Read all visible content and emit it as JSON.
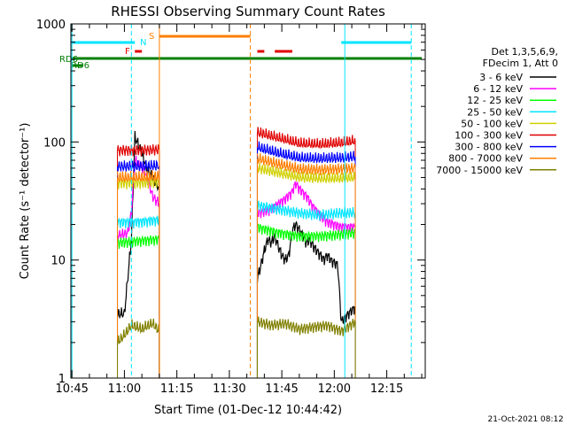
{
  "chart_data": {
    "type": "line",
    "title": "RHESSI Observing Summary Count Rates",
    "xlabel": "Start Time (01-Dec-12 10:44:42)",
    "ylabel": "Count Rate (s⁻¹ detector⁻¹)",
    "y_scale": "log",
    "ylim": [
      1,
      1000
    ],
    "xlim": [
      "10:44:42",
      "12:26:00"
    ],
    "x_ticks": [
      "10:45",
      "11:00",
      "11:15",
      "11:30",
      "11:45",
      "12:00",
      "12:15"
    ],
    "y_ticks": [
      "1",
      "10",
      "100",
      "1000"
    ],
    "timestamp": "21-Oct-2021 08:12",
    "legend": {
      "placement": "right",
      "header": [
        "Det 1,3,5,6,9,",
        "FDecim 1, Att 0"
      ]
    },
    "flag_labels": [
      {
        "text": "RD6",
        "color": "#008000"
      },
      {
        "text": "RD6",
        "color": "#008000"
      },
      {
        "text": "F",
        "color": "#e00000"
      },
      {
        "text": "N",
        "color": "#00e5ff"
      },
      {
        "text": "S",
        "color": "#ff7f00"
      }
    ],
    "flag_bars": [
      {
        "color": "#00e5ff",
        "segments": [
          [
            "10:45",
            "11:03"
          ],
          [
            "12:02",
            "12:22"
          ]
        ]
      },
      {
        "color": "#ff7f00",
        "segments": [
          [
            "11:10",
            "11:36"
          ]
        ]
      },
      {
        "color": "#e00000",
        "segments": [
          [
            "11:03",
            "11:05"
          ],
          [
            "11:38",
            "11:40"
          ],
          [
            "11:43",
            "11:48"
          ]
        ]
      },
      {
        "color": "#008000",
        "segments": [
          [
            "10:45",
            "12:25"
          ]
        ]
      },
      {
        "color": "#008000",
        "segments": [
          [
            "10:45",
            "10:48"
          ]
        ]
      }
    ],
    "vlines": [
      {
        "t": "10:45",
        "color": "#00e5ff",
        "style": "solid"
      },
      {
        "t": "11:02",
        "color": "#00e5ff",
        "style": "dashed"
      },
      {
        "t": "11:10",
        "color": "#ff7f00",
        "style": "solid"
      },
      {
        "t": "11:36",
        "color": "#ff7f00",
        "style": "dashed"
      },
      {
        "t": "12:03",
        "color": "#00e5ff",
        "style": "solid"
      },
      {
        "t": "12:22",
        "color": "#00e5ff",
        "style": "dashed"
      }
    ],
    "series": [
      {
        "name": "3 - 6 keV",
        "color": "#000000",
        "points": [
          [
            "10:58",
            3.5
          ],
          [
            "11:00",
            3.5
          ],
          [
            "11:02",
            15
          ],
          [
            "11:02:30",
            40
          ],
          [
            "11:03",
            110
          ],
          [
            "11:04",
            95
          ],
          [
            "11:05",
            80
          ],
          [
            "11:06",
            65
          ],
          [
            "11:07",
            55
          ],
          [
            "11:08",
            50
          ],
          [
            "11:09",
            45
          ],
          [
            "11:10",
            40
          ],
          [
            "11:38",
            7
          ],
          [
            "11:39",
            9
          ],
          [
            "11:40",
            12
          ],
          [
            "11:41",
            15
          ],
          [
            "11:42",
            14
          ],
          [
            "11:43",
            16
          ],
          [
            "11:44",
            13
          ],
          [
            "11:45",
            11
          ],
          [
            "11:46",
            10
          ],
          [
            "11:47",
            11
          ],
          [
            "11:48",
            18
          ],
          [
            "11:49",
            20
          ],
          [
            "11:50",
            18
          ],
          [
            "11:51",
            16
          ],
          [
            "11:52",
            14
          ],
          [
            "11:53",
            15
          ],
          [
            "11:54",
            13
          ],
          [
            "11:55",
            12
          ],
          [
            "11:56",
            11
          ],
          [
            "11:57",
            10
          ],
          [
            "11:58",
            11
          ],
          [
            "11:59",
            10
          ],
          [
            "12:00",
            9.5
          ],
          [
            "12:01",
            9
          ],
          [
            "12:02",
            3
          ],
          [
            "12:04",
            3.5
          ],
          [
            "12:06",
            4
          ]
        ]
      },
      {
        "name": "6 - 12 keV",
        "color": "#ff00ff",
        "points": [
          [
            "10:58",
            16
          ],
          [
            "11:01",
            17
          ],
          [
            "11:02",
            25
          ],
          [
            "11:03",
            70
          ],
          [
            "11:04",
            65
          ],
          [
            "11:05",
            60
          ],
          [
            "11:06",
            55
          ],
          [
            "11:07",
            45
          ],
          [
            "11:08",
            35
          ],
          [
            "11:09",
            32
          ],
          [
            "11:10",
            30
          ],
          [
            "11:38",
            25
          ],
          [
            "11:40",
            26
          ],
          [
            "11:42",
            27
          ],
          [
            "11:44",
            30
          ],
          [
            "11:46",
            33
          ],
          [
            "11:48",
            38
          ],
          [
            "11:49",
            45
          ],
          [
            "11:50",
            40
          ],
          [
            "11:52",
            35
          ],
          [
            "11:54",
            28
          ],
          [
            "11:56",
            24
          ],
          [
            "11:58",
            21
          ],
          [
            "12:00",
            20
          ],
          [
            "12:02",
            19
          ],
          [
            "12:04",
            19
          ],
          [
            "12:06",
            19
          ]
        ]
      },
      {
        "name": "12 - 25 keV",
        "color": "#00ff00",
        "points": [
          [
            "10:58",
            14
          ],
          [
            "11:04",
            14.5
          ],
          [
            "11:10",
            15
          ],
          [
            "11:38",
            19
          ],
          [
            "11:44",
            17
          ],
          [
            "11:50",
            16
          ],
          [
            "11:56",
            16
          ],
          [
            "12:02",
            16.5
          ],
          [
            "12:06",
            17
          ]
        ]
      },
      {
        "name": "25 - 50 keV",
        "color": "#00e5ff",
        "points": [
          [
            "10:58",
            21
          ],
          [
            "11:04",
            21
          ],
          [
            "11:10",
            22
          ],
          [
            "11:38",
            29
          ],
          [
            "11:44",
            27
          ],
          [
            "11:50",
            25
          ],
          [
            "11:56",
            24
          ],
          [
            "12:02",
            25
          ],
          [
            "12:06",
            25
          ]
        ]
      },
      {
        "name": "50 - 100 keV",
        "color": "#d0d000",
        "points": [
          [
            "10:58",
            45
          ],
          [
            "11:04",
            45
          ],
          [
            "11:10",
            46
          ],
          [
            "11:38",
            60
          ],
          [
            "11:44",
            55
          ],
          [
            "11:50",
            50
          ],
          [
            "11:56",
            49
          ],
          [
            "12:02",
            49
          ],
          [
            "12:06",
            50
          ]
        ]
      },
      {
        "name": "100 - 300 keV",
        "color": "#e00000",
        "points": [
          [
            "10:58",
            85
          ],
          [
            "11:04",
            85
          ],
          [
            "11:10",
            86
          ],
          [
            "11:38",
            120
          ],
          [
            "11:44",
            108
          ],
          [
            "11:50",
            97
          ],
          [
            "11:56",
            95
          ],
          [
            "12:02",
            98
          ],
          [
            "12:06",
            102
          ]
        ]
      },
      {
        "name": "300 - 800 keV",
        "color": "#0000ff",
        "points": [
          [
            "10:58",
            62
          ],
          [
            "11:04",
            62
          ],
          [
            "11:10",
            63
          ],
          [
            "11:38",
            90
          ],
          [
            "11:44",
            80
          ],
          [
            "11:50",
            73
          ],
          [
            "11:56",
            72
          ],
          [
            "12:02",
            73
          ],
          [
            "12:06",
            75
          ]
        ]
      },
      {
        "name": "800 - 7000 keV",
        "color": "#ff7f00",
        "points": [
          [
            "10:58",
            50
          ],
          [
            "11:04",
            50
          ],
          [
            "11:10",
            51
          ],
          [
            "11:38",
            72
          ],
          [
            "11:44",
            65
          ],
          [
            "11:50",
            59
          ],
          [
            "11:56",
            58
          ],
          [
            "12:02",
            59
          ],
          [
            "12:06",
            60
          ]
        ]
      },
      {
        "name": "7000 - 15000 keV",
        "color": "#808000",
        "points": [
          [
            "10:58",
            2.0
          ],
          [
            "11:00",
            2.3
          ],
          [
            "11:02",
            2.8
          ],
          [
            "11:05",
            2.6
          ],
          [
            "11:08",
            2.9
          ],
          [
            "11:10",
            2.5
          ],
          [
            "11:38",
            3.0
          ],
          [
            "11:42",
            2.8
          ],
          [
            "11:46",
            2.9
          ],
          [
            "11:50",
            2.6
          ],
          [
            "11:54",
            2.7
          ],
          [
            "11:58",
            2.8
          ],
          [
            "12:02",
            2.5
          ],
          [
            "12:06",
            3.0
          ]
        ]
      }
    ]
  }
}
